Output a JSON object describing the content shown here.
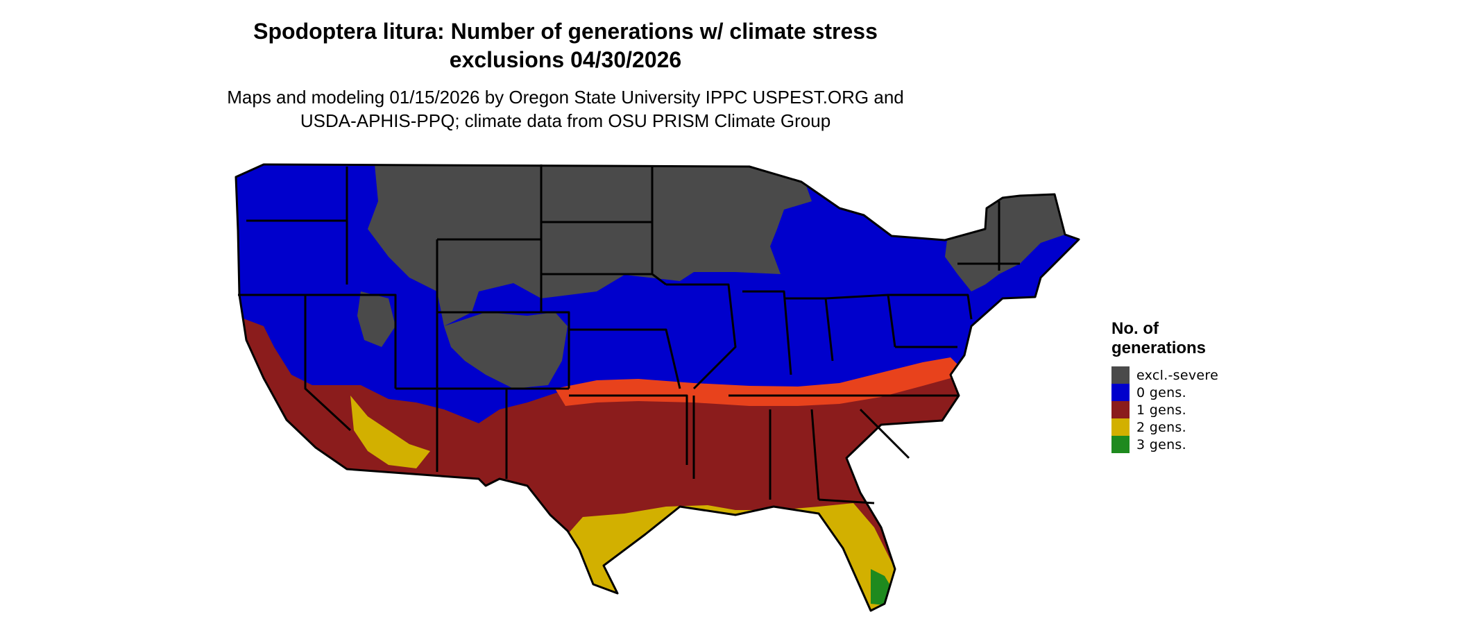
{
  "title": {
    "line1": "Spodoptera litura: Number of generations w/ climate stress",
    "line2": "exclusions 04/30/2026"
  },
  "subtitle": {
    "line1": "Maps and modeling 01/15/2026 by Oregon State University IPPC USPEST.ORG and",
    "line2": "USDA-APHIS-PPQ; climate data from OSU PRISM Climate Group"
  },
  "legend": {
    "title_line1": "No. of",
    "title_line2": "generations",
    "items": [
      {
        "label": "excl.-severe",
        "color": "#4a4a4a"
      },
      {
        "label": "0 gens.",
        "color": "#0000cc"
      },
      {
        "label": "1 gens.",
        "color": "#8b1c1c"
      },
      {
        "label": "2 gens.",
        "color": "#d2b000"
      },
      {
        "label": "3 gens.",
        "color": "#1e8a1e"
      }
    ]
  },
  "map": {
    "region": "Contiguous United States",
    "edge_band_color": "#e8421c"
  }
}
